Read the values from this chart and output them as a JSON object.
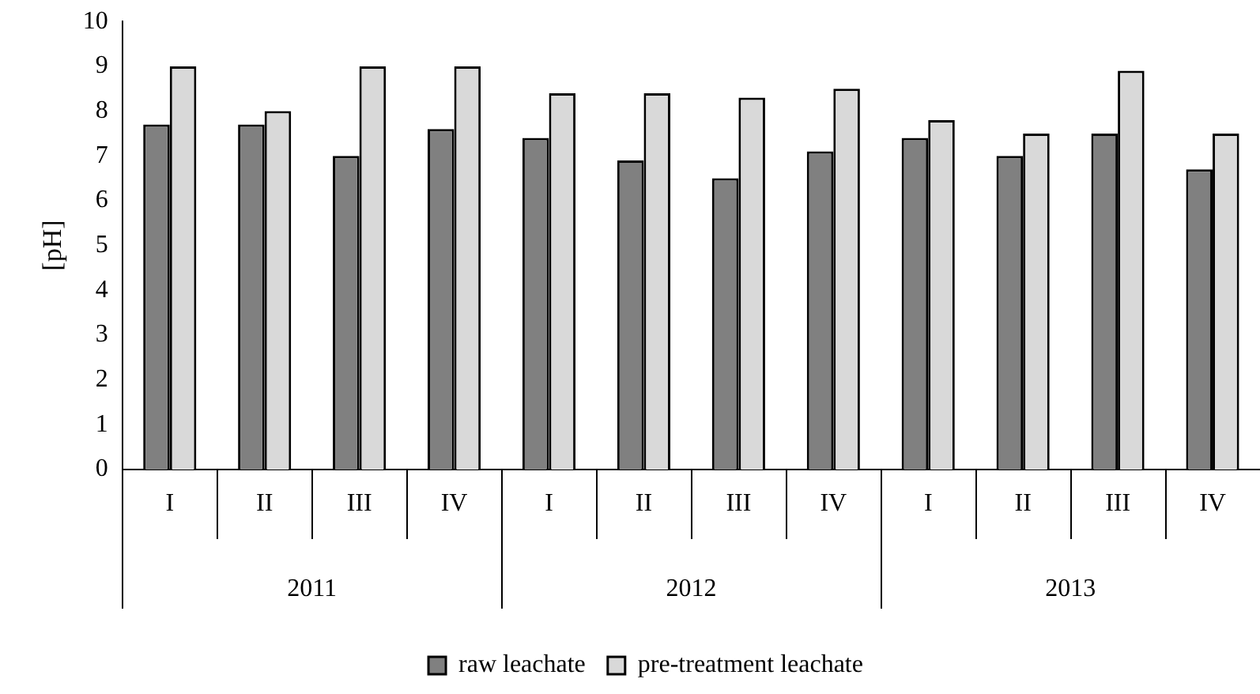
{
  "chart_data": {
    "type": "bar",
    "ylabel": "[pH]",
    "categories": [
      "I",
      "II",
      "III",
      "IV",
      "I",
      "II",
      "III",
      "IV",
      "I",
      "II",
      "III",
      "IV"
    ],
    "series": [
      {
        "name": "raw leachate",
        "color": "#808080",
        "values": [
          7.7,
          7.7,
          7.0,
          7.6,
          7.4,
          6.9,
          6.5,
          7.1,
          7.4,
          7.0,
          7.5,
          6.7
        ]
      },
      {
        "name": "pre-treatment leachate",
        "color": "#d9d9d9",
        "values": [
          9.0,
          8.0,
          9.0,
          9.0,
          8.4,
          8.4,
          8.3,
          8.5,
          7.8,
          7.5,
          8.9,
          7.5
        ]
      }
    ],
    "annotations": [
      "2011",
      "2012",
      "2013"
    ],
    "ylim": [
      0,
      10
    ],
    "yticks": [
      0,
      1,
      2,
      3,
      4,
      5,
      6,
      7,
      8,
      9,
      10
    ],
    "grid": false,
    "legend": "bottom"
  }
}
